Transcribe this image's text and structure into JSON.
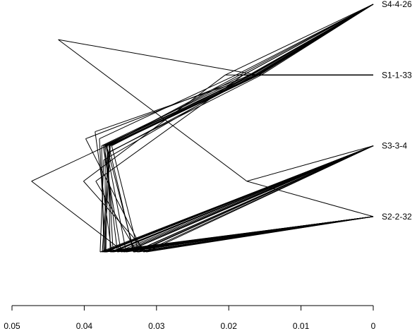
{
  "chart_data": {
    "type": "dendrogram",
    "title": "",
    "xlabel": "",
    "ylabel": "",
    "xlim": [
      0.05,
      0
    ],
    "x_ticks": [
      0.05,
      0.04,
      0.03,
      0.02,
      0.01,
      0
    ],
    "x_tick_labels": [
      "0.05",
      "0.04",
      "0.03",
      "0.02",
      "0.01",
      "0"
    ],
    "tips": [
      "S4-4-26",
      "S1-1-33",
      "S3-3-4",
      "S2-2-32"
    ],
    "trees": [
      [
        [
          0.0436,
          0.5
        ],
        [
          0.016,
          1
        ],
        [
          0.0175,
          2.5
        ]
      ],
      [
        [
          0.0365,
          2.0
        ],
        [
          0.016,
          1
        ],
        [
          0.0375,
          3.5
        ]
      ],
      [
        [
          0.0373,
          2.2
        ],
        [
          0.017,
          1
        ],
        [
          0.0378,
          3.5
        ]
      ],
      [
        [
          0.037,
          2.0
        ],
        [
          0.018,
          1
        ],
        [
          0.0342,
          3.5
        ]
      ],
      [
        [
          0.0368,
          2.1
        ],
        [
          0.0155,
          1
        ],
        [
          0.036,
          3.5
        ]
      ],
      [
        [
          0.0366,
          2.0
        ],
        [
          0.0158,
          1
        ],
        [
          0.0332,
          3.5
        ]
      ],
      [
        [
          0.0473,
          2.5
        ],
        [
          0.016,
          1
        ],
        [
          0.0345,
          3.5
        ]
      ],
      [
        [
          0.0362,
          2.0
        ],
        [
          0.017,
          1
        ],
        [
          0.0325,
          3.5
        ]
      ],
      [
        [
          0.0379,
          1.9
        ],
        [
          0.019,
          1
        ],
        [
          0.0371,
          3.5
        ]
      ],
      [
        [
          0.0401,
          2.5
        ],
        [
          0.0205,
          1
        ],
        [
          0.0314,
          3.5
        ]
      ],
      [
        [
          0.0384,
          2.5
        ],
        [
          0.018,
          1
        ],
        [
          0.0327,
          3.5
        ]
      ],
      [
        [
          0.0372,
          2.0
        ],
        [
          0.0162,
          1
        ],
        [
          0.0354,
          3.5
        ]
      ],
      [
        [
          0.0398,
          1.9
        ],
        [
          0.017,
          1
        ],
        [
          0.0318,
          3.5
        ]
      ],
      [
        [
          0.0385,
          1.8
        ],
        [
          0.016,
          1
        ],
        [
          0.0362,
          3.5
        ]
      ],
      [
        [
          0.0374,
          2.0
        ],
        [
          0.0165,
          1
        ],
        [
          0.0349,
          3.5
        ]
      ],
      [
        [
          0.0369,
          2.0
        ],
        [
          0.0185,
          1
        ],
        [
          0.0331,
          3.5
        ]
      ],
      [
        [
          0.0367,
          2.1
        ],
        [
          0.0163,
          1
        ],
        [
          0.0364,
          3.5
        ]
      ],
      [
        [
          0.0371,
          2.0
        ],
        [
          0.0168,
          1
        ],
        [
          0.0371,
          3.5
        ]
      ],
      [
        [
          0.0364,
          2.0
        ],
        [
          0.0158,
          1
        ],
        [
          0.0372,
          3.5
        ]
      ],
      [
        [
          0.0376,
          2.0
        ],
        [
          0.0172,
          1
        ],
        [
          0.0373,
          3.5
        ]
      ],
      [
        [
          0.0368,
          2.0
        ],
        [
          0.016,
          1
        ],
        [
          0.037,
          3.5
        ]
      ]
    ],
    "grid": false,
    "legend": "none"
  }
}
